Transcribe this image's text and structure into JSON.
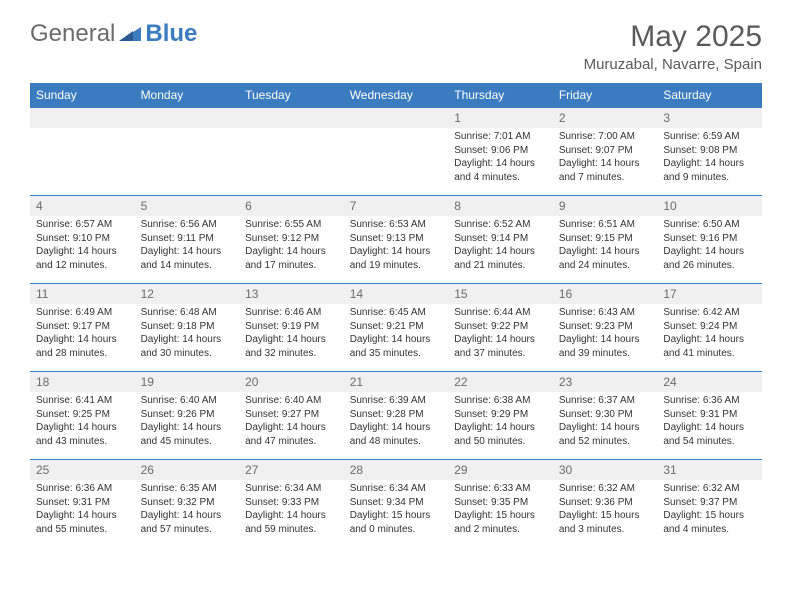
{
  "logo": {
    "part1": "General",
    "part2": "Blue"
  },
  "title": "May 2025",
  "location": "Muruzabal, Navarre, Spain",
  "colors": {
    "header_bg": "#3b7bbf",
    "header_text": "#ffffff",
    "divider": "#3b7bbf",
    "daynum_bg": "#f0f0f0",
    "body_text": "#333333",
    "title_text": "#5a5a5a",
    "logo_gray": "#6b6b6b",
    "logo_blue": "#3b7bbf"
  },
  "day_names": [
    "Sunday",
    "Monday",
    "Tuesday",
    "Wednesday",
    "Thursday",
    "Friday",
    "Saturday"
  ],
  "weeks": [
    [
      null,
      null,
      null,
      null,
      {
        "n": "1",
        "sr": "7:01 AM",
        "ss": "9:06 PM",
        "dl": "14 hours and 4 minutes."
      },
      {
        "n": "2",
        "sr": "7:00 AM",
        "ss": "9:07 PM",
        "dl": "14 hours and 7 minutes."
      },
      {
        "n": "3",
        "sr": "6:59 AM",
        "ss": "9:08 PM",
        "dl": "14 hours and 9 minutes."
      }
    ],
    [
      {
        "n": "4",
        "sr": "6:57 AM",
        "ss": "9:10 PM",
        "dl": "14 hours and 12 minutes."
      },
      {
        "n": "5",
        "sr": "6:56 AM",
        "ss": "9:11 PM",
        "dl": "14 hours and 14 minutes."
      },
      {
        "n": "6",
        "sr": "6:55 AM",
        "ss": "9:12 PM",
        "dl": "14 hours and 17 minutes."
      },
      {
        "n": "7",
        "sr": "6:53 AM",
        "ss": "9:13 PM",
        "dl": "14 hours and 19 minutes."
      },
      {
        "n": "8",
        "sr": "6:52 AM",
        "ss": "9:14 PM",
        "dl": "14 hours and 21 minutes."
      },
      {
        "n": "9",
        "sr": "6:51 AM",
        "ss": "9:15 PM",
        "dl": "14 hours and 24 minutes."
      },
      {
        "n": "10",
        "sr": "6:50 AM",
        "ss": "9:16 PM",
        "dl": "14 hours and 26 minutes."
      }
    ],
    [
      {
        "n": "11",
        "sr": "6:49 AM",
        "ss": "9:17 PM",
        "dl": "14 hours and 28 minutes."
      },
      {
        "n": "12",
        "sr": "6:48 AM",
        "ss": "9:18 PM",
        "dl": "14 hours and 30 minutes."
      },
      {
        "n": "13",
        "sr": "6:46 AM",
        "ss": "9:19 PM",
        "dl": "14 hours and 32 minutes."
      },
      {
        "n": "14",
        "sr": "6:45 AM",
        "ss": "9:21 PM",
        "dl": "14 hours and 35 minutes."
      },
      {
        "n": "15",
        "sr": "6:44 AM",
        "ss": "9:22 PM",
        "dl": "14 hours and 37 minutes."
      },
      {
        "n": "16",
        "sr": "6:43 AM",
        "ss": "9:23 PM",
        "dl": "14 hours and 39 minutes."
      },
      {
        "n": "17",
        "sr": "6:42 AM",
        "ss": "9:24 PM",
        "dl": "14 hours and 41 minutes."
      }
    ],
    [
      {
        "n": "18",
        "sr": "6:41 AM",
        "ss": "9:25 PM",
        "dl": "14 hours and 43 minutes."
      },
      {
        "n": "19",
        "sr": "6:40 AM",
        "ss": "9:26 PM",
        "dl": "14 hours and 45 minutes."
      },
      {
        "n": "20",
        "sr": "6:40 AM",
        "ss": "9:27 PM",
        "dl": "14 hours and 47 minutes."
      },
      {
        "n": "21",
        "sr": "6:39 AM",
        "ss": "9:28 PM",
        "dl": "14 hours and 48 minutes."
      },
      {
        "n": "22",
        "sr": "6:38 AM",
        "ss": "9:29 PM",
        "dl": "14 hours and 50 minutes."
      },
      {
        "n": "23",
        "sr": "6:37 AM",
        "ss": "9:30 PM",
        "dl": "14 hours and 52 minutes."
      },
      {
        "n": "24",
        "sr": "6:36 AM",
        "ss": "9:31 PM",
        "dl": "14 hours and 54 minutes."
      }
    ],
    [
      {
        "n": "25",
        "sr": "6:36 AM",
        "ss": "9:31 PM",
        "dl": "14 hours and 55 minutes."
      },
      {
        "n": "26",
        "sr": "6:35 AM",
        "ss": "9:32 PM",
        "dl": "14 hours and 57 minutes."
      },
      {
        "n": "27",
        "sr": "6:34 AM",
        "ss": "9:33 PM",
        "dl": "14 hours and 59 minutes."
      },
      {
        "n": "28",
        "sr": "6:34 AM",
        "ss": "9:34 PM",
        "dl": "15 hours and 0 minutes."
      },
      {
        "n": "29",
        "sr": "6:33 AM",
        "ss": "9:35 PM",
        "dl": "15 hours and 2 minutes."
      },
      {
        "n": "30",
        "sr": "6:32 AM",
        "ss": "9:36 PM",
        "dl": "15 hours and 3 minutes."
      },
      {
        "n": "31",
        "sr": "6:32 AM",
        "ss": "9:37 PM",
        "dl": "15 hours and 4 minutes."
      }
    ]
  ],
  "labels": {
    "sunrise": "Sunrise:",
    "sunset": "Sunset:",
    "daylight": "Daylight:"
  }
}
